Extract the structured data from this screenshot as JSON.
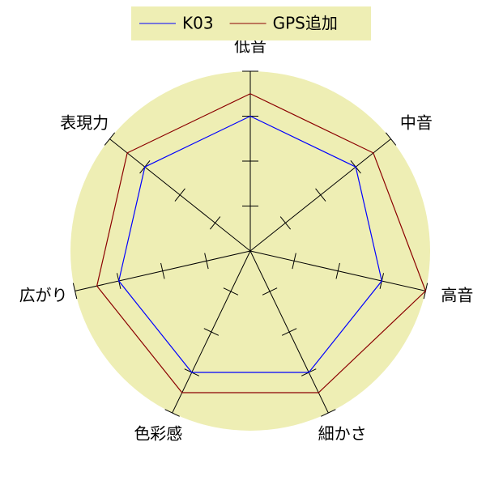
{
  "chart_data": {
    "type": "radar",
    "categories": [
      "低音",
      "中音",
      "高音",
      "細かさ",
      "色彩感",
      "広がり",
      "表現力"
    ],
    "series": [
      {
        "name": "K03",
        "color": "#0000ff",
        "values": [
          3,
          3,
          3,
          3,
          3,
          3,
          3
        ]
      },
      {
        "name": "GPS追加",
        "color": "#8b0000",
        "values": [
          3.5,
          3.5,
          4,
          3.5,
          3.5,
          3.5,
          3.5
        ]
      }
    ],
    "rlim": [
      0,
      4
    ],
    "rticks": [
      1,
      2,
      3,
      4
    ],
    "background": "#eeeeb4",
    "legend": "top"
  }
}
